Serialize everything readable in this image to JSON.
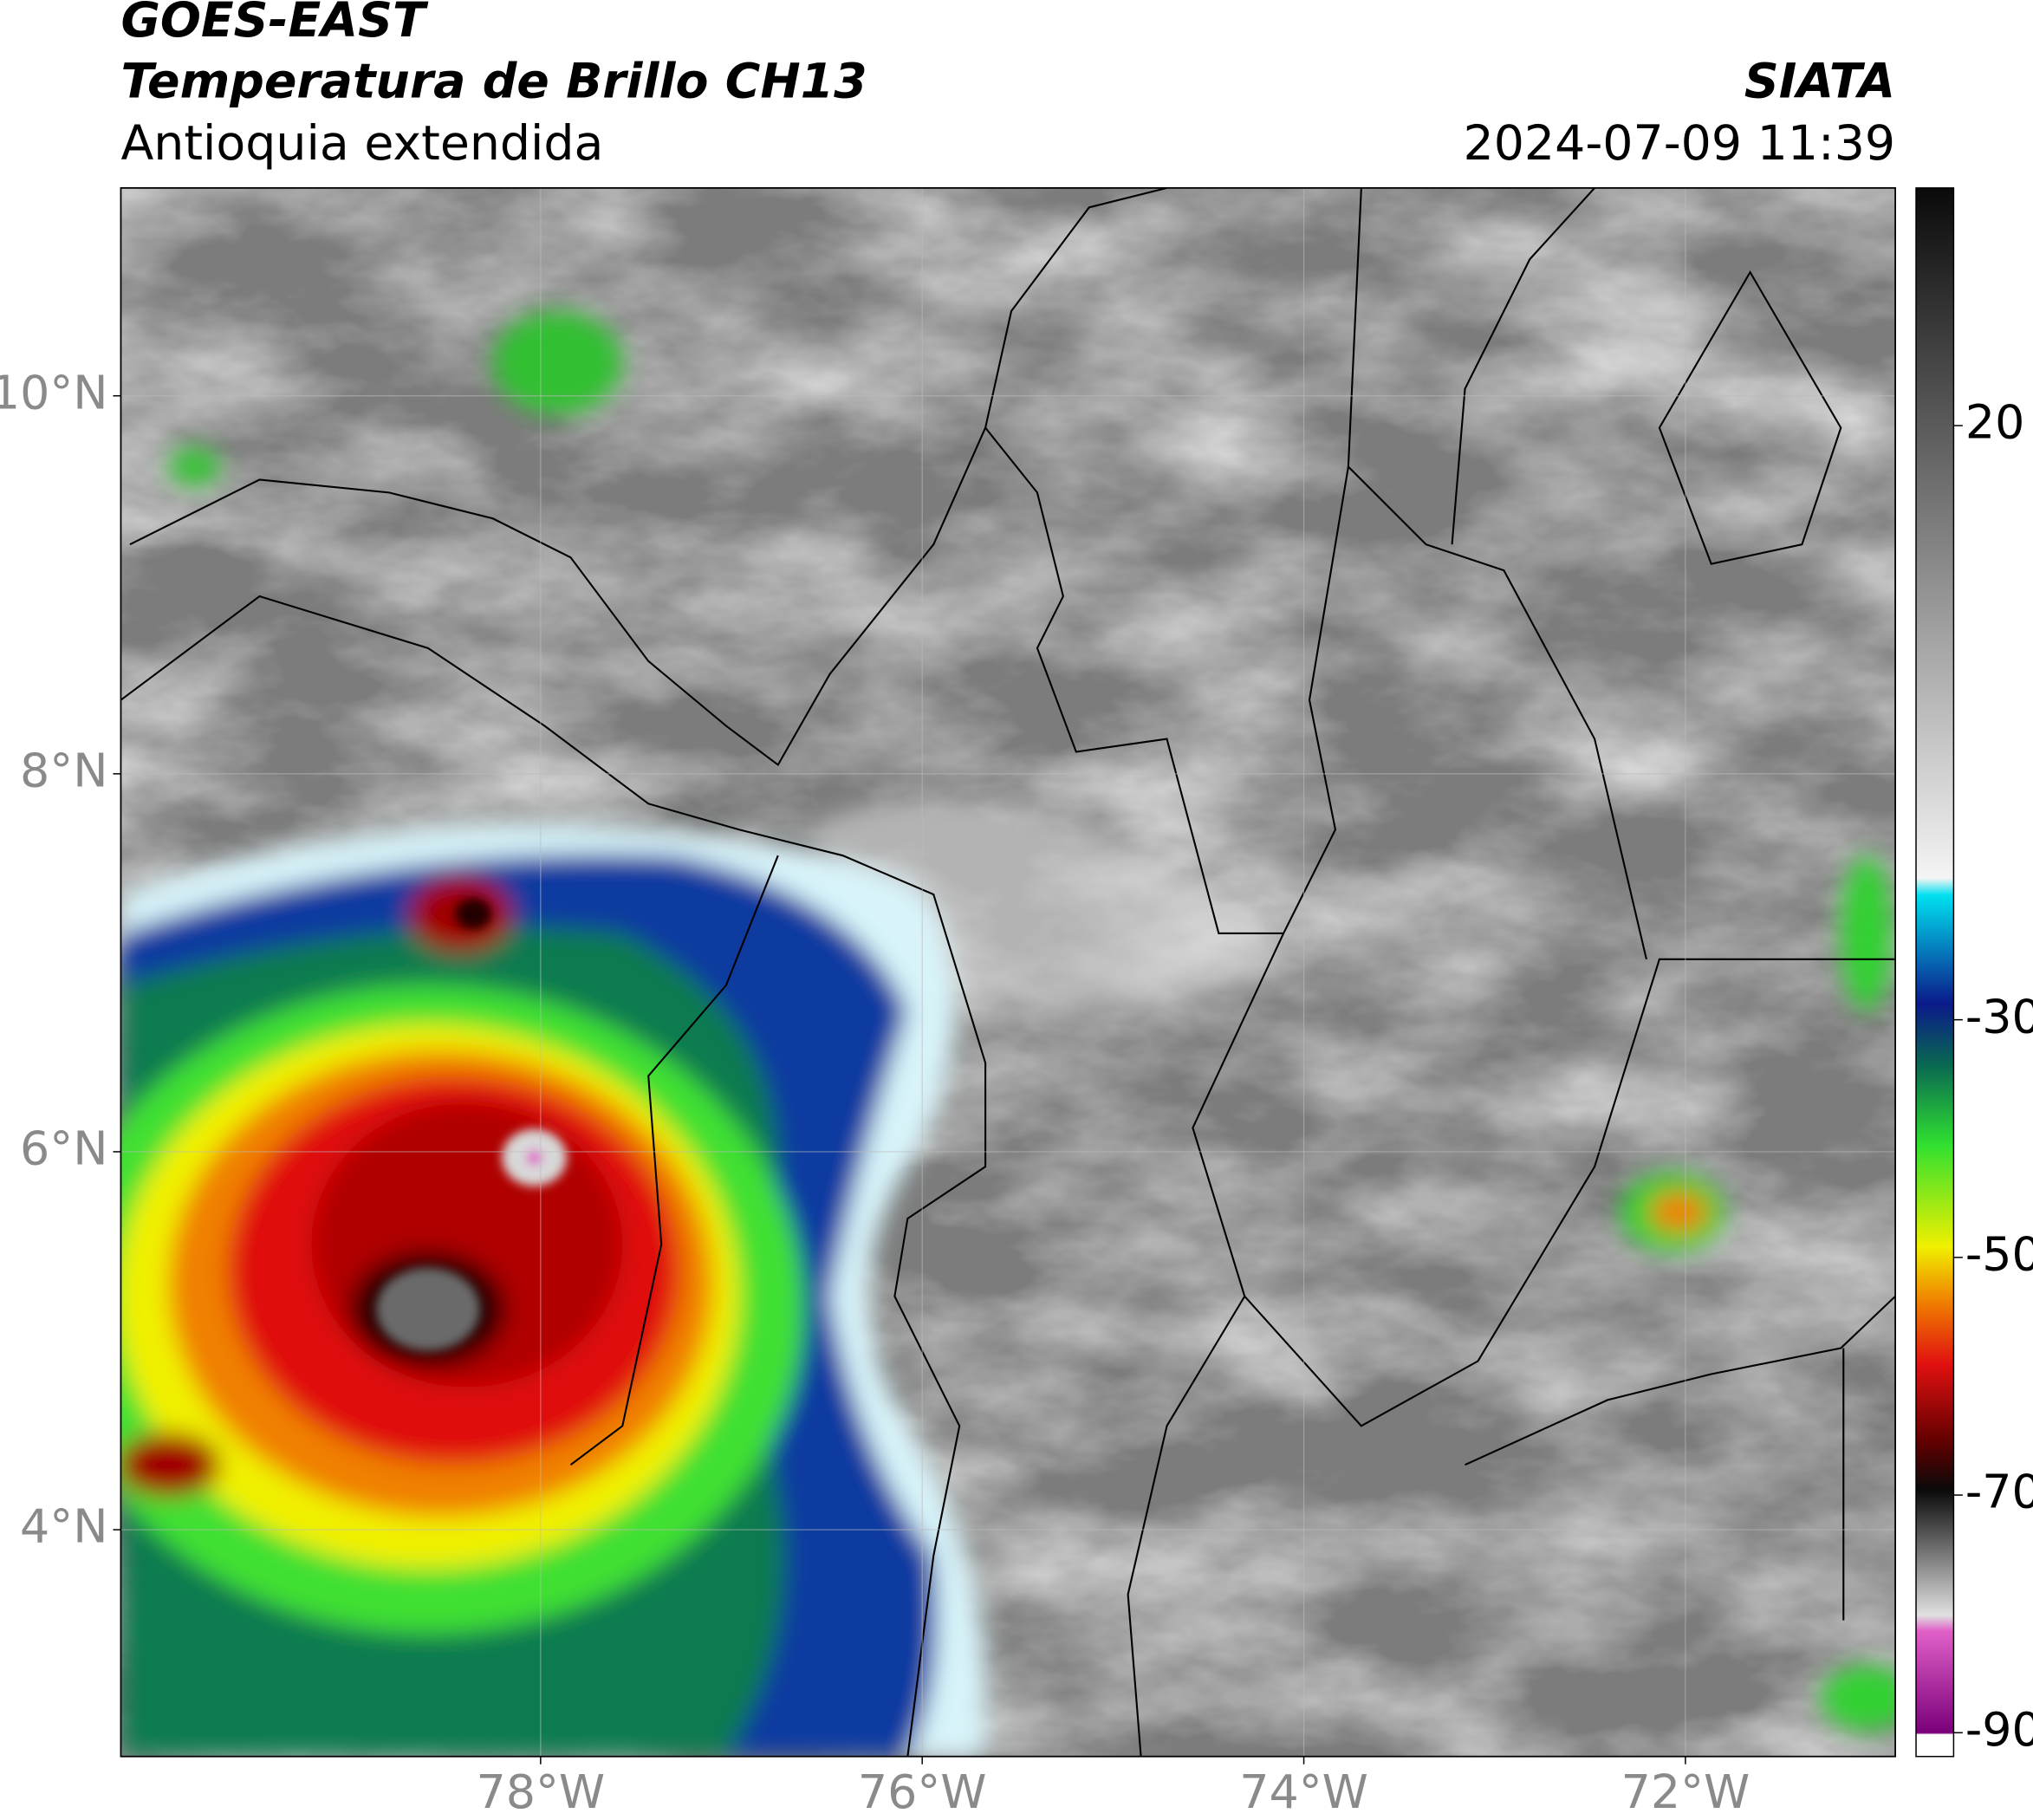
{
  "chart_data": {
    "type": "map",
    "title": "GOES-EAST",
    "subtitle": "Temperatura de Brillo CH13",
    "region": "Antioquia extendida",
    "source": "SIATA",
    "timestamp": "2024-07-09 11:39",
    "xlim": [
      -80.2,
      -70.9
    ],
    "ylim": [
      2.8,
      11.1
    ],
    "xticks": [
      {
        "value": -78,
        "label": "78°W"
      },
      {
        "value": -76,
        "label": "76°W"
      },
      {
        "value": -74,
        "label": "74°W"
      },
      {
        "value": -72,
        "label": "72°W"
      }
    ],
    "yticks": [
      {
        "value": 4,
        "label": "4°N"
      },
      {
        "value": 6,
        "label": "6°N"
      },
      {
        "value": 8,
        "label": "8°N"
      },
      {
        "value": 10,
        "label": "10°N"
      }
    ],
    "grid": true,
    "colorbar": {
      "lim": [
        -92,
        40
      ],
      "ticks": [
        20,
        -30,
        -50,
        -70,
        -90
      ]
    }
  }
}
